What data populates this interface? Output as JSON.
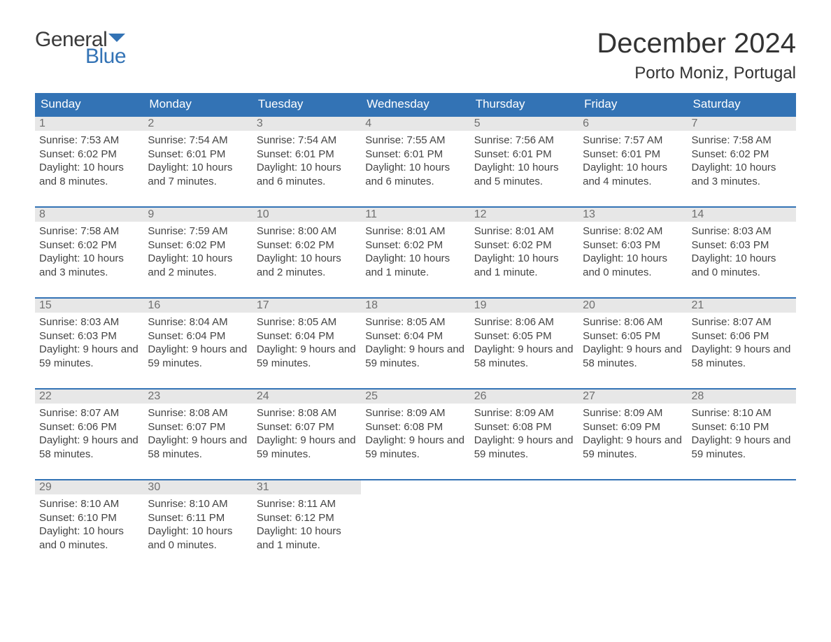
{
  "brand": {
    "line1": "General",
    "line2": "Blue",
    "flag_color": "#3373b5"
  },
  "title": "December 2024",
  "location": "Porto Moniz, Portugal",
  "colors": {
    "header_bg": "#3373b5",
    "header_text": "#ffffff",
    "daynum_bg": "#e7e7e7",
    "daynum_text": "#6f6f6f",
    "week_border": "#3373b5",
    "body_text": "#444444",
    "page_bg": "#ffffff"
  },
  "weekdays": [
    "Sunday",
    "Monday",
    "Tuesday",
    "Wednesday",
    "Thursday",
    "Friday",
    "Saturday"
  ],
  "weeks": [
    [
      {
        "n": "1",
        "sunrise": "Sunrise: 7:53 AM",
        "sunset": "Sunset: 6:02 PM",
        "daylight": "Daylight: 10 hours and 8 minutes."
      },
      {
        "n": "2",
        "sunrise": "Sunrise: 7:54 AM",
        "sunset": "Sunset: 6:01 PM",
        "daylight": "Daylight: 10 hours and 7 minutes."
      },
      {
        "n": "3",
        "sunrise": "Sunrise: 7:54 AM",
        "sunset": "Sunset: 6:01 PM",
        "daylight": "Daylight: 10 hours and 6 minutes."
      },
      {
        "n": "4",
        "sunrise": "Sunrise: 7:55 AM",
        "sunset": "Sunset: 6:01 PM",
        "daylight": "Daylight: 10 hours and 6 minutes."
      },
      {
        "n": "5",
        "sunrise": "Sunrise: 7:56 AM",
        "sunset": "Sunset: 6:01 PM",
        "daylight": "Daylight: 10 hours and 5 minutes."
      },
      {
        "n": "6",
        "sunrise": "Sunrise: 7:57 AM",
        "sunset": "Sunset: 6:01 PM",
        "daylight": "Daylight: 10 hours and 4 minutes."
      },
      {
        "n": "7",
        "sunrise": "Sunrise: 7:58 AM",
        "sunset": "Sunset: 6:02 PM",
        "daylight": "Daylight: 10 hours and 3 minutes."
      }
    ],
    [
      {
        "n": "8",
        "sunrise": "Sunrise: 7:58 AM",
        "sunset": "Sunset: 6:02 PM",
        "daylight": "Daylight: 10 hours and 3 minutes."
      },
      {
        "n": "9",
        "sunrise": "Sunrise: 7:59 AM",
        "sunset": "Sunset: 6:02 PM",
        "daylight": "Daylight: 10 hours and 2 minutes."
      },
      {
        "n": "10",
        "sunrise": "Sunrise: 8:00 AM",
        "sunset": "Sunset: 6:02 PM",
        "daylight": "Daylight: 10 hours and 2 minutes."
      },
      {
        "n": "11",
        "sunrise": "Sunrise: 8:01 AM",
        "sunset": "Sunset: 6:02 PM",
        "daylight": "Daylight: 10 hours and 1 minute."
      },
      {
        "n": "12",
        "sunrise": "Sunrise: 8:01 AM",
        "sunset": "Sunset: 6:02 PM",
        "daylight": "Daylight: 10 hours and 1 minute."
      },
      {
        "n": "13",
        "sunrise": "Sunrise: 8:02 AM",
        "sunset": "Sunset: 6:03 PM",
        "daylight": "Daylight: 10 hours and 0 minutes."
      },
      {
        "n": "14",
        "sunrise": "Sunrise: 8:03 AM",
        "sunset": "Sunset: 6:03 PM",
        "daylight": "Daylight: 10 hours and 0 minutes."
      }
    ],
    [
      {
        "n": "15",
        "sunrise": "Sunrise: 8:03 AM",
        "sunset": "Sunset: 6:03 PM",
        "daylight": "Daylight: 9 hours and 59 minutes."
      },
      {
        "n": "16",
        "sunrise": "Sunrise: 8:04 AM",
        "sunset": "Sunset: 6:04 PM",
        "daylight": "Daylight: 9 hours and 59 minutes."
      },
      {
        "n": "17",
        "sunrise": "Sunrise: 8:05 AM",
        "sunset": "Sunset: 6:04 PM",
        "daylight": "Daylight: 9 hours and 59 minutes."
      },
      {
        "n": "18",
        "sunrise": "Sunrise: 8:05 AM",
        "sunset": "Sunset: 6:04 PM",
        "daylight": "Daylight: 9 hours and 59 minutes."
      },
      {
        "n": "19",
        "sunrise": "Sunrise: 8:06 AM",
        "sunset": "Sunset: 6:05 PM",
        "daylight": "Daylight: 9 hours and 58 minutes."
      },
      {
        "n": "20",
        "sunrise": "Sunrise: 8:06 AM",
        "sunset": "Sunset: 6:05 PM",
        "daylight": "Daylight: 9 hours and 58 minutes."
      },
      {
        "n": "21",
        "sunrise": "Sunrise: 8:07 AM",
        "sunset": "Sunset: 6:06 PM",
        "daylight": "Daylight: 9 hours and 58 minutes."
      }
    ],
    [
      {
        "n": "22",
        "sunrise": "Sunrise: 8:07 AM",
        "sunset": "Sunset: 6:06 PM",
        "daylight": "Daylight: 9 hours and 58 minutes."
      },
      {
        "n": "23",
        "sunrise": "Sunrise: 8:08 AM",
        "sunset": "Sunset: 6:07 PM",
        "daylight": "Daylight: 9 hours and 58 minutes."
      },
      {
        "n": "24",
        "sunrise": "Sunrise: 8:08 AM",
        "sunset": "Sunset: 6:07 PM",
        "daylight": "Daylight: 9 hours and 59 minutes."
      },
      {
        "n": "25",
        "sunrise": "Sunrise: 8:09 AM",
        "sunset": "Sunset: 6:08 PM",
        "daylight": "Daylight: 9 hours and 59 minutes."
      },
      {
        "n": "26",
        "sunrise": "Sunrise: 8:09 AM",
        "sunset": "Sunset: 6:08 PM",
        "daylight": "Daylight: 9 hours and 59 minutes."
      },
      {
        "n": "27",
        "sunrise": "Sunrise: 8:09 AM",
        "sunset": "Sunset: 6:09 PM",
        "daylight": "Daylight: 9 hours and 59 minutes."
      },
      {
        "n": "28",
        "sunrise": "Sunrise: 8:10 AM",
        "sunset": "Sunset: 6:10 PM",
        "daylight": "Daylight: 9 hours and 59 minutes."
      }
    ],
    [
      {
        "n": "29",
        "sunrise": "Sunrise: 8:10 AM",
        "sunset": "Sunset: 6:10 PM",
        "daylight": "Daylight: 10 hours and 0 minutes."
      },
      {
        "n": "30",
        "sunrise": "Sunrise: 8:10 AM",
        "sunset": "Sunset: 6:11 PM",
        "daylight": "Daylight: 10 hours and 0 minutes."
      },
      {
        "n": "31",
        "sunrise": "Sunrise: 8:11 AM",
        "sunset": "Sunset: 6:12 PM",
        "daylight": "Daylight: 10 hours and 1 minute."
      },
      null,
      null,
      null,
      null
    ]
  ]
}
